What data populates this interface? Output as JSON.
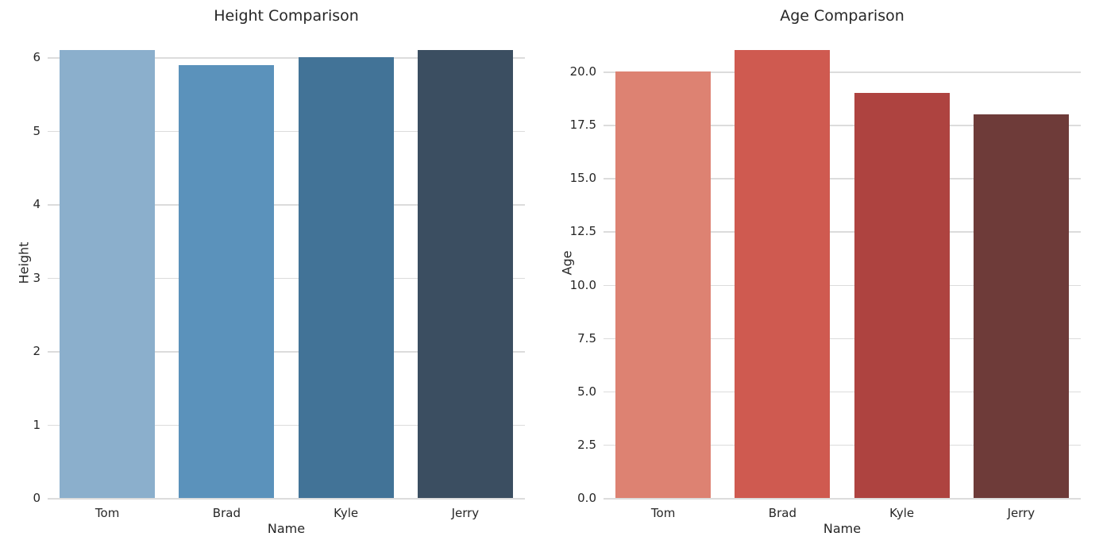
{
  "figure": {
    "background": "#ffffff",
    "grid_color": "#dcdcdc",
    "text_color": "#262626"
  },
  "chart_data": [
    {
      "type": "bar",
      "title": "Height Comparison",
      "xlabel": "Name",
      "ylabel": "Height",
      "categories": [
        "Tom",
        "Brad",
        "Kyle",
        "Jerry"
      ],
      "values": [
        6.1,
        5.9,
        6.0,
        6.1
      ],
      "bar_colors": [
        "#8bafcc",
        "#5b92bb",
        "#427397",
        "#3b4e61"
      ],
      "ylim": [
        0,
        6.405
      ],
      "yticks": [
        0,
        1,
        2,
        3,
        4,
        5,
        6
      ],
      "ytick_labels": [
        "0",
        "1",
        "2",
        "3",
        "4",
        "5",
        "6"
      ],
      "grid": true,
      "bar_width": 0.8,
      "legend": null
    },
    {
      "type": "bar",
      "title": "Age Comparison",
      "xlabel": "Name",
      "ylabel": "Age",
      "categories": [
        "Tom",
        "Brad",
        "Kyle",
        "Jerry"
      ],
      "values": [
        20.0,
        21.0,
        19.0,
        18.0
      ],
      "bar_colors": [
        "#dd8272",
        "#cf5a50",
        "#ae4340",
        "#6e3b39"
      ],
      "ylim": [
        0,
        22.05
      ],
      "yticks": [
        0,
        2.5,
        5,
        7.5,
        10,
        12.5,
        15,
        17.5,
        20
      ],
      "ytick_labels": [
        "0.0",
        "2.5",
        "5.0",
        "7.5",
        "10.0",
        "12.5",
        "15.0",
        "17.5",
        "20.0"
      ],
      "grid": true,
      "bar_width": 0.8,
      "legend": null
    }
  ]
}
